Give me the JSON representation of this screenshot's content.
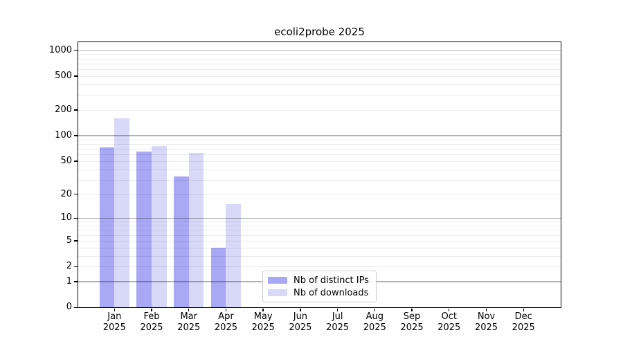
{
  "chart_data": {
    "type": "bar",
    "title": "ecoli2probe 2025",
    "x": {
      "categories": [
        "Jan",
        "Feb",
        "Mar",
        "Apr",
        "May",
        "Jun",
        "Jul",
        "Aug",
        "Sep",
        "Oct",
        "Nov",
        "Dec"
      ],
      "year": "2025"
    },
    "y_axis": {
      "scale": "log10(1+x)",
      "ticks": [
        0,
        1,
        2,
        5,
        10,
        20,
        50,
        100,
        200,
        500,
        1000
      ],
      "major_gridlines": [
        1,
        10,
        100,
        1000
      ],
      "minor_gridline_decades": [
        1,
        10,
        100
      ],
      "ylim": [
        0,
        1240
      ],
      "grid": "on",
      "ylabel": ""
    },
    "series": [
      {
        "name": "Nb of distinct IPs",
        "color": "#a8a8f5",
        "values": [
          73,
          65,
          33,
          4,
          null,
          null,
          null,
          null,
          null,
          null,
          null,
          null
        ]
      },
      {
        "name": "Nb of downloads",
        "color": "#d8d8f8",
        "values": [
          160,
          76,
          62,
          15,
          null,
          null,
          null,
          null,
          null,
          null,
          null,
          null
        ]
      }
    ],
    "legend": {
      "position": "lower-center-left-inside",
      "entries": [
        "Nb of distinct IPs",
        "Nb of downloads"
      ]
    }
  },
  "colors": {
    "background": "#ffffff",
    "axis": "#000000",
    "grid_major": "#b3b3b3",
    "grid_minor": "#ebebeb",
    "legend_border": "#cccccc",
    "text": "#000000"
  }
}
